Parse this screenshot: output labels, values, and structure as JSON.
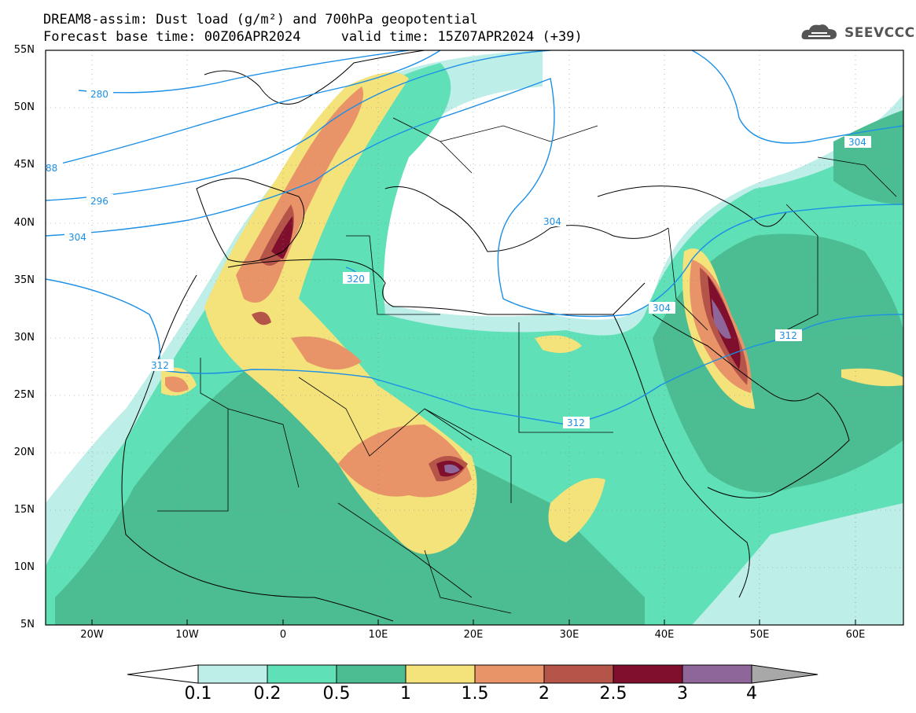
{
  "title": {
    "line1": "DREAM8-assim: Dust load (g/m²) and 700hPa geopotential",
    "line2": "Forecast base time: 00Z06APR2024     valid time: 15Z07APR2024 (+39)"
  },
  "logo": {
    "text": "SEEVCCC",
    "icon": "cloud-icon"
  },
  "map": {
    "lat_labels": [
      "55N",
      "50N",
      "45N",
      "40N",
      "35N",
      "30N",
      "25N",
      "20N",
      "15N",
      "10N",
      "5N"
    ],
    "lon_labels": [
      "20W",
      "10W",
      "0",
      "10E",
      "20E",
      "30E",
      "40E",
      "50E",
      "60E"
    ],
    "contour_labels": [
      "280",
      "88",
      "296",
      "304",
      "304",
      "320",
      "312",
      "304",
      "312",
      "312",
      "304"
    ]
  },
  "colorbar": {
    "levels": [
      "0.1",
      "0.2",
      "0.5",
      "1",
      "1.5",
      "2",
      "2.5",
      "3",
      "4"
    ],
    "colors": [
      "#ffffff",
      "#bdeee8",
      "#5fe0b6",
      "#4cbd92",
      "#f4e27a",
      "#e89468",
      "#b55448",
      "#7f0f2c",
      "#8e6699",
      "#a8a8a8"
    ]
  }
}
